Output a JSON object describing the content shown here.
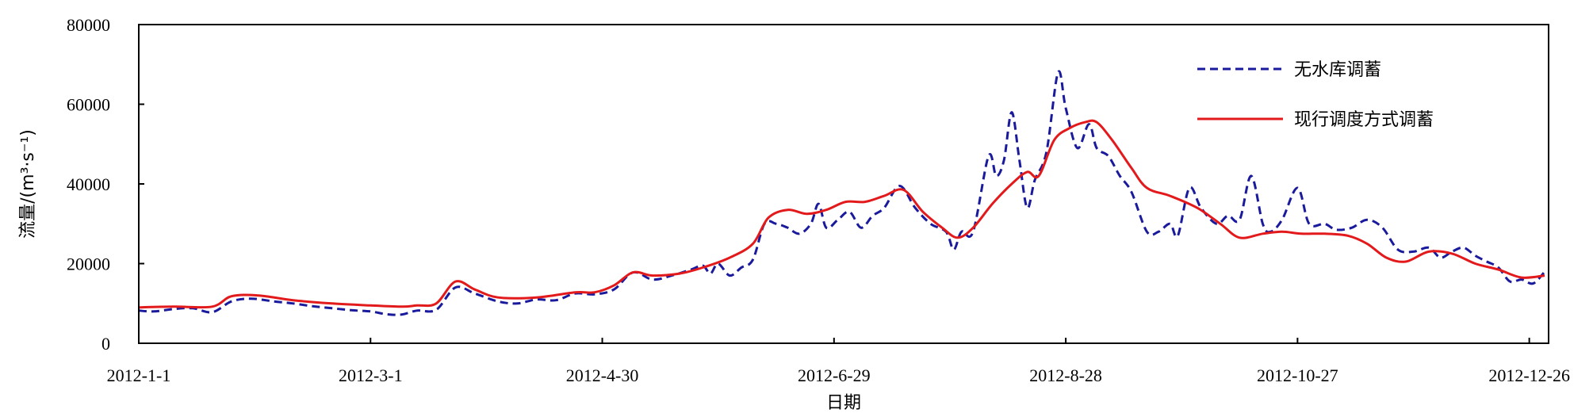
{
  "chart_data": {
    "type": "line",
    "xlabel": "日期",
    "ylabel": "流量/(m³·s⁻¹)",
    "x_ticks": [
      "2012-1-1",
      "2012-3-1",
      "2012-4-30",
      "2012-6-29",
      "2012-8-28",
      "2012-10-27",
      "2012-12-26"
    ],
    "y_ticks": [
      "0",
      "20000",
      "40000",
      "60000",
      "80000"
    ],
    "xlim": [
      "2012-1-1",
      "2012-12-31"
    ],
    "ylim": [
      0,
      80000
    ],
    "grid": false,
    "legend_position": "top-right",
    "series": [
      {
        "name": "无水库调蓄",
        "color": "#1a1a9c",
        "style": "dashed",
        "points": [
          [
            "2012-1-1",
            8200
          ],
          [
            "2012-1-5",
            8000
          ],
          [
            "2012-1-10",
            8600
          ],
          [
            "2012-1-15",
            8800
          ],
          [
            "2012-1-20",
            7800
          ],
          [
            "2012-1-25",
            10500
          ],
          [
            "2012-1-30",
            11200
          ],
          [
            "2012-2-5",
            10500
          ],
          [
            "2012-2-10",
            10000
          ],
          [
            "2012-2-15",
            9300
          ],
          [
            "2012-2-20",
            8800
          ],
          [
            "2012-2-25",
            8300
          ],
          [
            "2012-3-1",
            8000
          ],
          [
            "2012-3-5",
            7300
          ],
          [
            "2012-3-9",
            7200
          ],
          [
            "2012-3-13",
            8200
          ],
          [
            "2012-3-18",
            8400
          ],
          [
            "2012-3-23",
            14000
          ],
          [
            "2012-3-28",
            12500
          ],
          [
            "2012-4-3",
            10500
          ],
          [
            "2012-4-8",
            10000
          ],
          [
            "2012-4-13",
            11000
          ],
          [
            "2012-4-18",
            10800
          ],
          [
            "2012-4-23",
            12500
          ],
          [
            "2012-4-28",
            12300
          ],
          [
            "2012-5-3",
            13500
          ],
          [
            "2012-5-8",
            17800
          ],
          [
            "2012-5-13",
            16000
          ],
          [
            "2012-5-18",
            17000
          ],
          [
            "2012-5-23",
            18500
          ],
          [
            "2012-5-26",
            19500
          ],
          [
            "2012-5-28",
            17500
          ],
          [
            "2012-5-30",
            20000
          ],
          [
            "2012-6-2",
            17000
          ],
          [
            "2012-6-5",
            19000
          ],
          [
            "2012-6-8",
            21000
          ],
          [
            "2012-6-11",
            30000
          ],
          [
            "2012-6-14",
            30000
          ],
          [
            "2012-6-17",
            29000
          ],
          [
            "2012-6-20",
            27500
          ],
          [
            "2012-6-23",
            30000
          ],
          [
            "2012-6-25",
            35000
          ],
          [
            "2012-6-27",
            29000
          ],
          [
            "2012-6-30",
            31000
          ],
          [
            "2012-7-3",
            33000
          ],
          [
            "2012-7-6",
            29000
          ],
          [
            "2012-7-9",
            32000
          ],
          [
            "2012-7-12",
            34000
          ],
          [
            "2012-7-16",
            39500
          ],
          [
            "2012-7-20",
            34000
          ],
          [
            "2012-7-24",
            30000
          ],
          [
            "2012-7-28",
            28000
          ],
          [
            "2012-7-30",
            23500
          ],
          [
            "2012-8-1",
            28000
          ],
          [
            "2012-8-4",
            28000
          ],
          [
            "2012-8-8",
            47000
          ],
          [
            "2012-8-10",
            42000
          ],
          [
            "2012-8-12",
            46000
          ],
          [
            "2012-8-14",
            58000
          ],
          [
            "2012-8-16",
            46000
          ],
          [
            "2012-8-18",
            34000
          ],
          [
            "2012-8-20",
            41000
          ],
          [
            "2012-8-23",
            48000
          ],
          [
            "2012-8-26",
            68000
          ],
          [
            "2012-8-28",
            59000
          ],
          [
            "2012-8-31",
            49000
          ],
          [
            "2012-9-3",
            55000
          ],
          [
            "2012-9-5",
            49000
          ],
          [
            "2012-9-8",
            47000
          ],
          [
            "2012-9-11",
            42000
          ],
          [
            "2012-9-14",
            38000
          ],
          [
            "2012-9-18",
            28000
          ],
          [
            "2012-9-21",
            28000
          ],
          [
            "2012-9-24",
            30000
          ],
          [
            "2012-9-26",
            27000
          ],
          [
            "2012-9-29",
            39000
          ],
          [
            "2012-10-2",
            34000
          ],
          [
            "2012-10-6",
            30000
          ],
          [
            "2012-10-9",
            32000
          ],
          [
            "2012-10-12",
            31000
          ],
          [
            "2012-10-15",
            42000
          ],
          [
            "2012-10-18",
            30000
          ],
          [
            "2012-10-20",
            28000
          ],
          [
            "2012-10-23",
            31000
          ],
          [
            "2012-10-27",
            39000
          ],
          [
            "2012-10-30",
            30000
          ],
          [
            "2012-11-3",
            30000
          ],
          [
            "2012-11-6",
            28500
          ],
          [
            "2012-11-10",
            29000
          ],
          [
            "2012-11-14",
            31000
          ],
          [
            "2012-11-18",
            29000
          ],
          [
            "2012-11-22",
            23500
          ],
          [
            "2012-11-26",
            23000
          ],
          [
            "2012-11-30",
            24000
          ],
          [
            "2012-12-3",
            21500
          ],
          [
            "2012-12-6",
            23000
          ],
          [
            "2012-12-9",
            24000
          ],
          [
            "2012-12-12",
            22000
          ],
          [
            "2012-12-15",
            20500
          ],
          [
            "2012-12-18",
            19000
          ],
          [
            "2012-12-21",
            15500
          ],
          [
            "2012-12-24",
            16000
          ],
          [
            "2012-12-27",
            15000
          ],
          [
            "2012-12-30",
            18000
          ]
        ]
      },
      {
        "name": "现行调度方式调蓄",
        "color": "#e31a1c",
        "style": "solid",
        "points": [
          [
            "2012-1-1",
            9000
          ],
          [
            "2012-1-10",
            9200
          ],
          [
            "2012-1-20",
            9200
          ],
          [
            "2012-1-25",
            11800
          ],
          [
            "2012-2-1",
            12000
          ],
          [
            "2012-2-10",
            10800
          ],
          [
            "2012-2-20",
            10000
          ],
          [
            "2012-3-1",
            9500
          ],
          [
            "2012-3-9",
            9200
          ],
          [
            "2012-3-13",
            9500
          ],
          [
            "2012-3-18",
            10000
          ],
          [
            "2012-3-23",
            15500
          ],
          [
            "2012-3-28",
            13500
          ],
          [
            "2012-4-3",
            11500
          ],
          [
            "2012-4-13",
            11500
          ],
          [
            "2012-4-23",
            12800
          ],
          [
            "2012-4-28",
            12800
          ],
          [
            "2012-5-3",
            14500
          ],
          [
            "2012-5-8",
            17800
          ],
          [
            "2012-5-13",
            17000
          ],
          [
            "2012-5-20",
            17500
          ],
          [
            "2012-5-26",
            19000
          ],
          [
            "2012-6-2",
            21500
          ],
          [
            "2012-6-8",
            25000
          ],
          [
            "2012-6-12",
            31500
          ],
          [
            "2012-6-17",
            33500
          ],
          [
            "2012-6-22",
            32500
          ],
          [
            "2012-6-27",
            33500
          ],
          [
            "2012-7-2",
            35500
          ],
          [
            "2012-7-7",
            35500
          ],
          [
            "2012-7-12",
            37000
          ],
          [
            "2012-7-17",
            38500
          ],
          [
            "2012-7-22",
            33000
          ],
          [
            "2012-7-27",
            29000
          ],
          [
            "2012-7-31",
            26500
          ],
          [
            "2012-8-4",
            29000
          ],
          [
            "2012-8-9",
            35000
          ],
          [
            "2012-8-14",
            40000
          ],
          [
            "2012-8-18",
            43000
          ],
          [
            "2012-8-21",
            42000
          ],
          [
            "2012-8-25",
            51000
          ],
          [
            "2012-8-29",
            54000
          ],
          [
            "2012-9-2",
            55500
          ],
          [
            "2012-9-5",
            55500
          ],
          [
            "2012-9-9",
            51000
          ],
          [
            "2012-9-14",
            44000
          ],
          [
            "2012-9-18",
            39000
          ],
          [
            "2012-9-24",
            37000
          ],
          [
            "2012-10-1",
            34000
          ],
          [
            "2012-10-7",
            30000
          ],
          [
            "2012-10-12",
            26500
          ],
          [
            "2012-10-18",
            27500
          ],
          [
            "2012-10-23",
            28000
          ],
          [
            "2012-10-28",
            27500
          ],
          [
            "2012-11-3",
            27500
          ],
          [
            "2012-11-9",
            27000
          ],
          [
            "2012-11-14",
            25000
          ],
          [
            "2012-11-19",
            21500
          ],
          [
            "2012-11-24",
            20500
          ],
          [
            "2012-11-30",
            23000
          ],
          [
            "2012-12-6",
            22500
          ],
          [
            "2012-12-12",
            20000
          ],
          [
            "2012-12-18",
            18500
          ],
          [
            "2012-12-24",
            16500
          ],
          [
            "2012-12-30",
            17000
          ]
        ]
      }
    ]
  }
}
